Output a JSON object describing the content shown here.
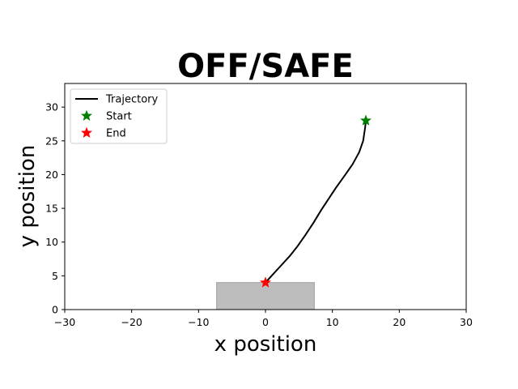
{
  "chart_data": {
    "type": "line",
    "title": "OFF/SAFE",
    "xlabel": "x position",
    "ylabel": "y position",
    "xlim": [
      -30,
      30
    ],
    "ylim": [
      0,
      33.5
    ],
    "xticks": [
      -30,
      -20,
      -10,
      0,
      10,
      20,
      30
    ],
    "yticks": [
      0,
      5,
      10,
      15,
      20,
      25,
      30
    ],
    "grid": false,
    "legend_position": "top-left",
    "series": [
      {
        "name": "Trajectory",
        "color": "#000000",
        "x": [
          15.0,
          14.9,
          14.6,
          14.0,
          13.0,
          11.8,
          10.5,
          9.5,
          8.3,
          7.2,
          6.0,
          4.8,
          3.6,
          2.3,
          1.0,
          0.0
        ],
        "y": [
          28.0,
          27.0,
          25.0,
          23.3,
          21.5,
          19.8,
          18.0,
          16.5,
          14.7,
          12.9,
          11.1,
          9.4,
          7.9,
          6.5,
          5.1,
          4.0
        ]
      }
    ],
    "markers": [
      {
        "name": "Start",
        "x": 15.0,
        "y": 28.0,
        "color": "#008000",
        "symbol": "star"
      },
      {
        "name": "End",
        "x": 0.0,
        "y": 4.0,
        "color": "#ff0000",
        "symbol": "star"
      }
    ],
    "regions": [
      {
        "x0": -7.3,
        "x1": 7.3,
        "y0": 0,
        "y1": 4.0,
        "color": "#bdbdbd"
      }
    ]
  }
}
